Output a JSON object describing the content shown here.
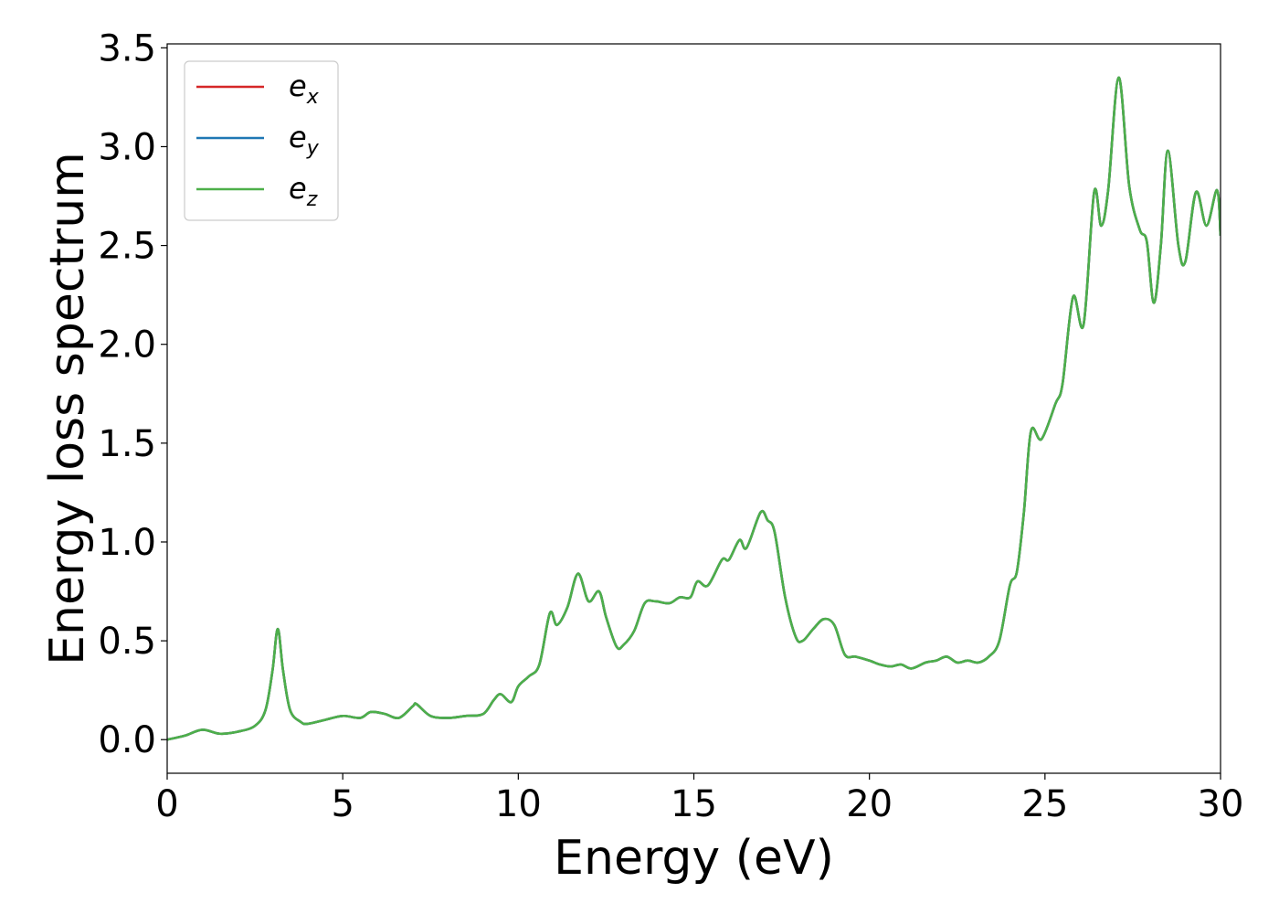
{
  "chart_data": {
    "type": "line",
    "title": "",
    "xlabel": "Energy (eV)",
    "ylabel": "Energy loss spectrum",
    "xlim": [
      0,
      30
    ],
    "ylim": [
      -0.17,
      3.52
    ],
    "xticks": [
      0,
      5,
      10,
      15,
      20,
      25,
      30
    ],
    "yticks": [
      0.0,
      0.5,
      1.0,
      1.5,
      2.0,
      2.5,
      3.0,
      3.5
    ],
    "xtick_labels": [
      "0",
      "5",
      "10",
      "15",
      "20",
      "25",
      "30"
    ],
    "ytick_labels": [
      "0.0",
      "0.5",
      "1.0",
      "1.5",
      "2.0",
      "2.5",
      "3.0",
      "3.5"
    ],
    "grid": false,
    "legend_position": "top-left",
    "series": [
      {
        "name": "e",
        "subscript": "x",
        "color": "#d62728"
      },
      {
        "name": "e",
        "subscript": "y",
        "color": "#1f77b4"
      },
      {
        "name": "e",
        "subscript": "z",
        "color": "#4daf4a"
      }
    ],
    "x": [
      0,
      0.5,
      1.0,
      1.5,
      2.0,
      2.5,
      2.8,
      3.0,
      3.15,
      3.3,
      3.5,
      3.8,
      4.0,
      4.5,
      5.0,
      5.5,
      5.8,
      6.2,
      6.6,
      7.0,
      7.1,
      7.5,
      8.0,
      8.5,
      9.0,
      9.3,
      9.5,
      9.8,
      10.0,
      10.3,
      10.6,
      10.9,
      11.1,
      11.4,
      11.7,
      12.0,
      12.3,
      12.5,
      12.8,
      13.0,
      13.3,
      13.6,
      13.9,
      14.3,
      14.6,
      14.9,
      15.1,
      15.4,
      15.8,
      16.0,
      16.3,
      16.5,
      16.9,
      17.1,
      17.3,
      17.6,
      17.9,
      18.1,
      18.4,
      18.7,
      19.0,
      19.3,
      19.6,
      20.0,
      20.3,
      20.6,
      20.9,
      21.2,
      21.6,
      21.9,
      22.2,
      22.5,
      22.8,
      23.1,
      23.4,
      23.7,
      24.0,
      24.2,
      24.4,
      24.6,
      24.9,
      25.3,
      25.5,
      25.8,
      26.1,
      26.4,
      26.6,
      26.8,
      27.1,
      27.4,
      27.7,
      27.9,
      28.1,
      28.3,
      28.5,
      28.8,
      29.0,
      29.3,
      29.6,
      29.9,
      30.0
    ],
    "values": [
      0.0,
      0.02,
      0.05,
      0.03,
      0.04,
      0.07,
      0.15,
      0.35,
      0.56,
      0.35,
      0.15,
      0.09,
      0.08,
      0.1,
      0.12,
      0.11,
      0.14,
      0.13,
      0.11,
      0.17,
      0.18,
      0.12,
      0.11,
      0.12,
      0.13,
      0.2,
      0.23,
      0.19,
      0.27,
      0.32,
      0.38,
      0.64,
      0.58,
      0.67,
      0.84,
      0.7,
      0.75,
      0.62,
      0.47,
      0.48,
      0.55,
      0.69,
      0.7,
      0.69,
      0.72,
      0.72,
      0.8,
      0.78,
      0.91,
      0.91,
      1.01,
      0.97,
      1.15,
      1.11,
      1.05,
      0.72,
      0.52,
      0.5,
      0.56,
      0.61,
      0.58,
      0.43,
      0.42,
      0.4,
      0.38,
      0.37,
      0.38,
      0.36,
      0.39,
      0.4,
      0.42,
      0.39,
      0.4,
      0.39,
      0.42,
      0.5,
      0.78,
      0.85,
      1.15,
      1.56,
      1.52,
      1.7,
      1.8,
      2.24,
      2.1,
      2.77,
      2.6,
      2.78,
      3.35,
      2.8,
      2.58,
      2.52,
      2.21,
      2.5,
      2.98,
      2.5,
      2.42,
      2.77,
      2.6,
      2.78,
      2.55
    ]
  }
}
